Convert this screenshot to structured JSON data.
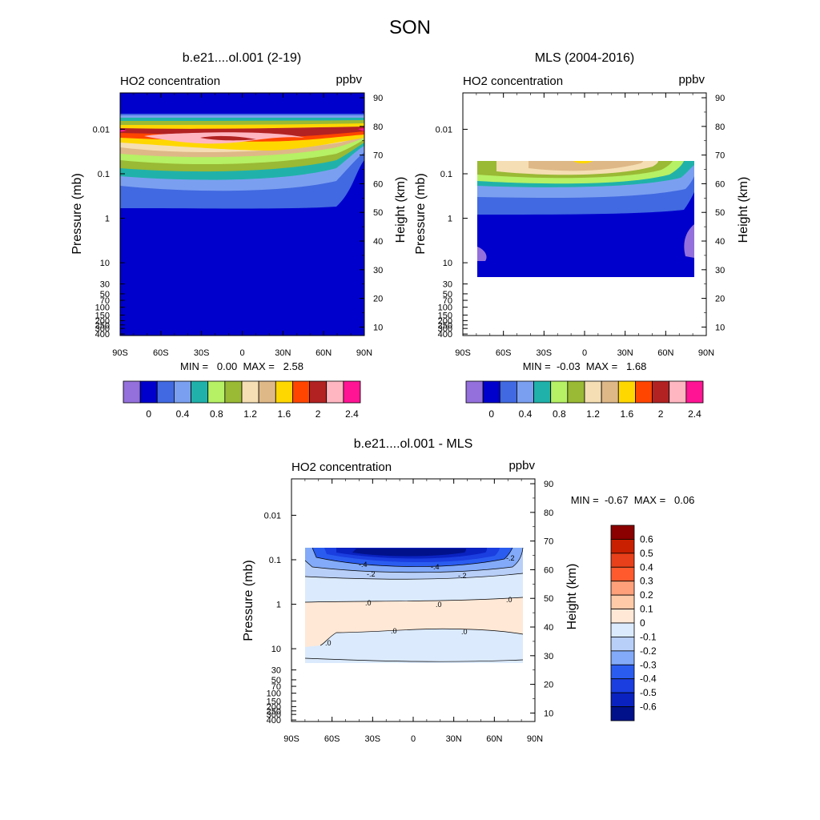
{
  "page": {
    "title": "SON"
  },
  "panels": [
    {
      "id": "model",
      "title": "b.e21....ol.001 (2-19)",
      "left_label": "HO2 concentration",
      "right_label": "ppbv",
      "ylabel_left": "Pressure (mb)",
      "ylabel_right": "Height (km)",
      "stats_text": "MIN =   0.00  MAX =   2.58",
      "chart_data": {
        "type": "heatmap",
        "x_ticks": [
          "90S",
          "60S",
          "30S",
          "0",
          "30N",
          "60N",
          "90N"
        ],
        "x_range": [
          -90,
          90
        ],
        "pressure_ticks": [
          "0.01",
          "0.1",
          "1",
          "10",
          "30",
          "50",
          "70",
          "100",
          "150",
          "200",
          "250",
          "300",
          "400"
        ],
        "pressure_values": [
          0.01,
          0.1,
          1,
          10,
          30,
          50,
          70,
          100,
          150,
          200,
          250,
          300,
          400
        ],
        "height_ticks": [
          "90",
          "80",
          "70",
          "60",
          "50",
          "40",
          "30",
          "20",
          "10"
        ],
        "height_values_km": [
          90,
          80,
          70,
          60,
          50,
          40,
          30,
          20,
          10
        ],
        "colorbar": {
          "colors": [
            "#9370db",
            "#0000cd",
            "#4169e1",
            "#7b9ff0",
            "#20b2aa",
            "#b6f064",
            "#9ab934",
            "#f5deb3",
            "#deb887",
            "#ffd700",
            "#ff4500",
            "#b22222",
            "#ffb6c1",
            "#ff1493"
          ],
          "labels": [
            "0",
            "0.4",
            "0.8",
            "1.2",
            "1.6",
            "2",
            "2.4"
          ]
        },
        "min": 0.0,
        "max": 2.58,
        "data_extent": {
          "lat": [
            -90,
            90
          ],
          "pressure_mb": [
            0.0018,
            400
          ]
        }
      }
    },
    {
      "id": "obs",
      "title": "MLS (2004-2016)",
      "left_label": "HO2 concentration",
      "right_label": "ppbv",
      "ylabel_left": "Pressure (mb)",
      "ylabel_right": "Height (km)",
      "stats_text": "MIN =  -0.03  MAX =   1.68",
      "chart_data": {
        "type": "heatmap",
        "x_ticks": [
          "90S",
          "60S",
          "30S",
          "0",
          "30N",
          "60N",
          "90N"
        ],
        "x_range": [
          -90,
          90
        ],
        "pressure_ticks": [
          "0.01",
          "0.1",
          "1",
          "10",
          "30",
          "50",
          "70",
          "100",
          "150",
          "200",
          "250",
          "300",
          "400"
        ],
        "pressure_values": [
          0.01,
          0.1,
          1,
          10,
          30,
          50,
          70,
          100,
          150,
          200,
          250,
          300,
          400
        ],
        "height_ticks": [
          "90",
          "80",
          "70",
          "60",
          "50",
          "40",
          "30",
          "20",
          "10"
        ],
        "height_values_km": [
          90,
          80,
          70,
          60,
          50,
          40,
          30,
          20,
          10
        ],
        "colorbar": {
          "colors": [
            "#9370db",
            "#0000cd",
            "#4169e1",
            "#7b9ff0",
            "#20b2aa",
            "#b6f064",
            "#9ab934",
            "#f5deb3",
            "#deb887",
            "#ffd700",
            "#ff4500",
            "#b22222",
            "#ffb6c1",
            "#ff1493"
          ],
          "labels": [
            "0",
            "0.4",
            "0.8",
            "1.2",
            "1.6",
            "2",
            "2.4"
          ]
        },
        "min": -0.03,
        "max": 1.68,
        "data_extent": {
          "lat": [
            -80,
            80
          ],
          "pressure_mb": [
            0.046,
            22
          ]
        }
      }
    },
    {
      "id": "diff",
      "title": "b.e21....ol.001 - MLS",
      "left_label": "HO2 concentration",
      "right_label": "ppbv",
      "ylabel_left": "Pressure (mb)",
      "ylabel_right": "Height (km)",
      "stats_text": "MIN =  -0.67  MAX =   0.06",
      "chart_data": {
        "type": "heatmap",
        "x_ticks": [
          "90S",
          "60S",
          "30S",
          "0",
          "30N",
          "60N",
          "90N"
        ],
        "x_range": [
          -90,
          90
        ],
        "pressure_ticks": [
          "0.01",
          "0.1",
          "1",
          "10",
          "30",
          "50",
          "70",
          "100",
          "150",
          "200",
          "250",
          "300",
          "400"
        ],
        "pressure_values": [
          0.01,
          0.1,
          1,
          10,
          30,
          50,
          70,
          100,
          150,
          200,
          250,
          300,
          400
        ],
        "height_ticks": [
          "90",
          "80",
          "70",
          "60",
          "50",
          "40",
          "30",
          "20",
          "10"
        ],
        "height_values_km": [
          90,
          80,
          70,
          60,
          50,
          40,
          30,
          20,
          10
        ],
        "contour_labels": [
          ".0",
          "-.2",
          "-.4"
        ],
        "colorbar": {
          "colors": [
            "#8b0000",
            "#c82000",
            "#e8401a",
            "#ff5a2e",
            "#ffa07a",
            "#ffcaa8",
            "#ffe8d6",
            "#dbeafc",
            "#b8cff8",
            "#82aaf8",
            "#2a5cf0",
            "#1a3ee0",
            "#0a22c0",
            "#00118a"
          ],
          "labels": [
            "0.6",
            "0.5",
            "0.4",
            "0.3",
            "0.2",
            "0.1",
            "0",
            "-0.1",
            "-0.2",
            "-0.3",
            "-0.4",
            "-0.5",
            "-0.6"
          ]
        },
        "min": -0.67,
        "max": 0.06,
        "data_extent": {
          "lat": [
            -80,
            80
          ],
          "pressure_mb": [
            0.046,
            22
          ]
        }
      }
    }
  ]
}
